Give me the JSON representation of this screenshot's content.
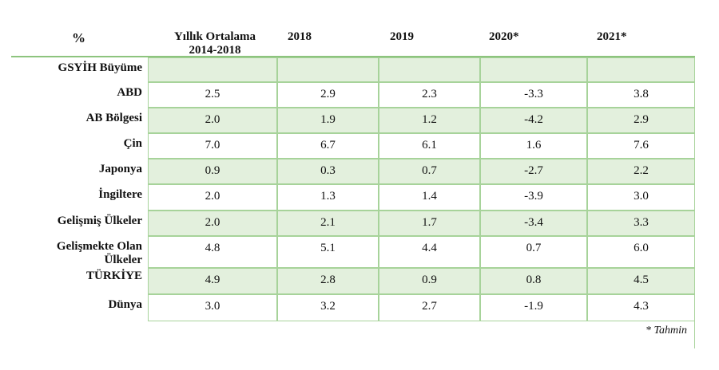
{
  "header": {
    "unit": "%",
    "col_avg_line1": "Yıllık Ortalama",
    "col_avg_line2": "2014-2018",
    "col_2018": "2018",
    "col_2019": "2019",
    "col_2020": "2020*",
    "col_2021": "2021*"
  },
  "section_label": "GSYİH Büyüme",
  "rows": [
    {
      "label": "ABD",
      "values": [
        "2.5",
        "2.9",
        "2.3",
        "-3.3",
        "3.8"
      ]
    },
    {
      "label": "AB Bölgesi",
      "values": [
        "2.0",
        "1.9",
        "1.2",
        "-4.2",
        "2.9"
      ]
    },
    {
      "label": "Çin",
      "values": [
        "7.0",
        "6.7",
        "6.1",
        "1.6",
        "7.6"
      ]
    },
    {
      "label": "Japonya",
      "values": [
        "0.9",
        "0.3",
        "0.7",
        "-2.7",
        "2.2"
      ]
    },
    {
      "label": "İngiltere",
      "values": [
        "2.0",
        "1.3",
        "1.4",
        "-3.9",
        "3.0"
      ]
    },
    {
      "label": "Gelişmiş Ülkeler",
      "values": [
        "2.0",
        "2.1",
        "1.7",
        "-3.4",
        "3.3"
      ]
    },
    {
      "label_line1": "Gelişmekte Olan",
      "label_line2": "Ülkeler",
      "values": [
        "4.8",
        "5.1",
        "4.4",
        "0.7",
        "6.0"
      ]
    },
    {
      "label": "TÜRKİYE",
      "values": [
        "4.9",
        "2.8",
        "0.9",
        "0.8",
        "4.5"
      ]
    },
    {
      "label": "Dünya",
      "values": [
        "3.0",
        "3.2",
        "2.7",
        "-1.9",
        "4.3"
      ]
    }
  ],
  "footnote": "* Tahmin",
  "colors": {
    "alt_row_fill": "#e3f0dd",
    "border": "#a7d39a",
    "header_rule": "#8dc47e"
  }
}
